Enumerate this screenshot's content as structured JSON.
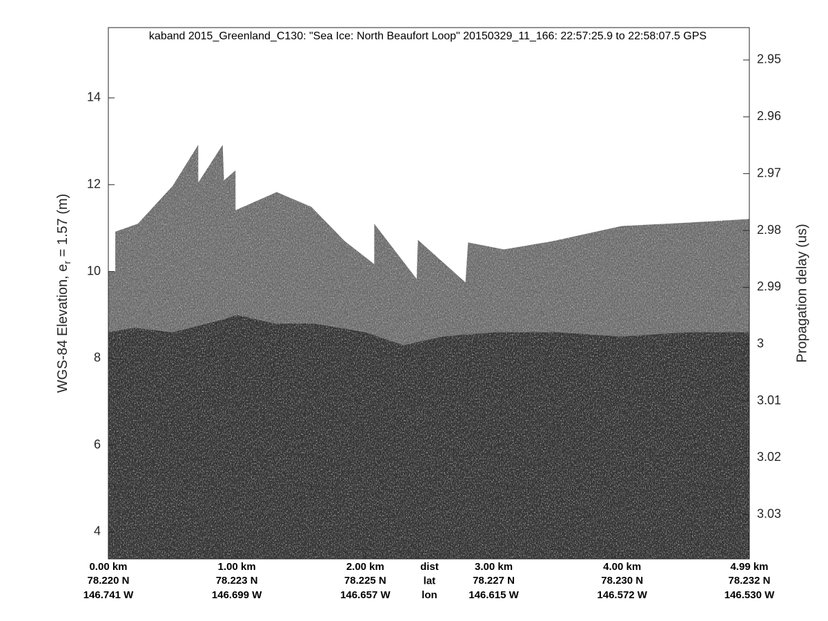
{
  "chart_data": {
    "type": "echogram",
    "title": "kaband 2015_Greenland_C130: \"Sea Ice: North Beaufort Loop\"  20150329_11_166: 22:57:25.9 to 22:58:07.5 GPS",
    "ylabel": {
      "text": "WGS-84 Elevation, e",
      "sub": "r",
      "rest": " = 1.57 (m)"
    },
    "y2label": "Propagation delay (us)",
    "xlim": [
      0,
      4.99
    ],
    "xticks": [
      {
        "value": 0,
        "label": "0.00 km"
      },
      {
        "value": 1,
        "label": "1.00 km"
      },
      {
        "value": 2,
        "label": "2.00 km"
      },
      {
        "value": 3,
        "label": "3.00 km"
      },
      {
        "value": 4,
        "label": "4.00 km"
      },
      {
        "value": 4.99,
        "label": "4.99 km"
      }
    ],
    "lat_labels": [
      "78.220 N",
      "78.223 N",
      "78.225 N",
      "78.227 N",
      "78.230 N",
      "78.232 N"
    ],
    "lon_labels": [
      "146.741 W",
      "146.699 W",
      "146.657 W",
      "146.615 W",
      "146.572 W",
      "146.530 W"
    ],
    "row_names": [
      "dist",
      "lat",
      "lon"
    ],
    "ylim": [
      3.38,
      15.62
    ],
    "yticks": [
      4,
      6,
      8,
      10,
      12,
      14
    ],
    "y2lim": [
      3.0378,
      2.9443
    ],
    "y2ticks": [
      2.95,
      2.96,
      2.97,
      2.98,
      2.99,
      3,
      3.01,
      3.02,
      3.03
    ],
    "series": [
      {
        "color": "#7b7b7b",
        "x": [
          0,
          0.054,
          0.054,
          0.23,
          0.5,
          0.7,
          0.7,
          0.89,
          0.9,
          0.99,
          0.99,
          1.31,
          1.58,
          1.84,
          2.07,
          2.07,
          2.4,
          2.41,
          2.78,
          2.8,
          3.08,
          3.46,
          4.0,
          4.53,
          4.99
        ],
        "values": [
          10.0,
          10.0,
          10.92,
          11.1,
          11.97,
          12.92,
          12.05,
          12.92,
          12.1,
          12.33,
          11.41,
          11.83,
          11.49,
          10.7,
          10.17,
          11.1,
          9.83,
          10.73,
          9.75,
          10.67,
          10.51,
          10.7,
          11.05,
          11.13,
          11.21
        ]
      },
      {
        "color": "#3e3e3e",
        "x": [
          0,
          0.2,
          0.5,
          0.9,
          1.0,
          1.3,
          1.6,
          2.0,
          2.3,
          2.6,
          3.0,
          3.5,
          4.0,
          4.5,
          4.99
        ],
        "values": [
          8.6,
          8.7,
          8.6,
          8.9,
          9.0,
          8.8,
          8.8,
          8.6,
          8.3,
          8.5,
          8.6,
          8.6,
          8.5,
          8.6,
          8.6
        ]
      }
    ]
  }
}
